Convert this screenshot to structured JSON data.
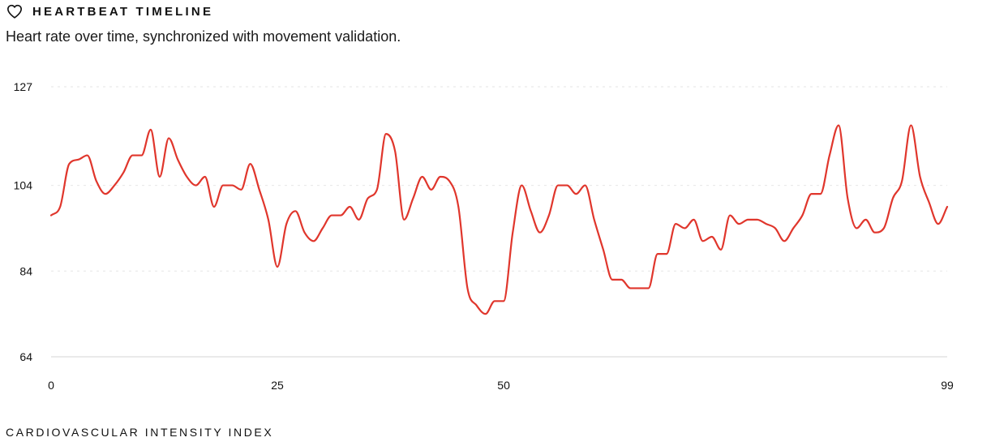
{
  "header": {
    "icon": "heart-icon",
    "title": "HEARTBEAT TIMELINE",
    "subtitle": "Heart rate over time, synchronized with movement validation."
  },
  "footer": {
    "label": "CARDIOVASCULAR INTENSITY INDEX"
  },
  "colors": {
    "line": "#e0362c",
    "grid": "#e6e6e6",
    "baseline": "#e3e3e3"
  },
  "chart_data": {
    "type": "line",
    "title": "",
    "xlabel": "",
    "ylabel": "",
    "xlim": [
      0,
      99
    ],
    "ylim": [
      64,
      127
    ],
    "x_ticks": [
      0,
      25,
      50,
      99
    ],
    "y_ticks": [
      64,
      84,
      104,
      127
    ],
    "grid": true,
    "series": [
      {
        "values": [
          97,
          99,
          109,
          110,
          111,
          105,
          102,
          104,
          107,
          111,
          111,
          117,
          106,
          115,
          110,
          106,
          104,
          106,
          99,
          104,
          104,
          103,
          109,
          103,
          96,
          85,
          95,
          98,
          93,
          91,
          94,
          97,
          97,
          99,
          96,
          101,
          103,
          116,
          112,
          96,
          101,
          106,
          103,
          106,
          105,
          99,
          80,
          76,
          74,
          77,
          77,
          93,
          104,
          98,
          93,
          97,
          104,
          104,
          102,
          104,
          96,
          89,
          82,
          82,
          80,
          80,
          80,
          88,
          88,
          95,
          94,
          96,
          91,
          92,
          89,
          97,
          95,
          96,
          96,
          95,
          94,
          91,
          94,
          97,
          102,
          102,
          111,
          118,
          101,
          94,
          96,
          93,
          94,
          101,
          105,
          118,
          106,
          100,
          95,
          99
        ]
      }
    ]
  }
}
